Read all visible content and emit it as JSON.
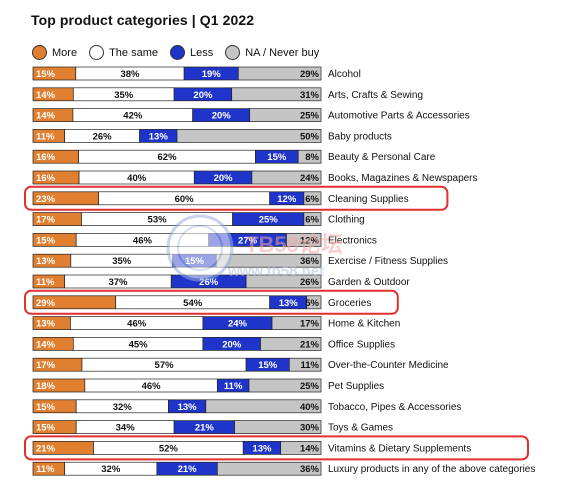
{
  "chart_data": {
    "type": "bar",
    "stacked": true,
    "orientation": "horizontal",
    "title": "Top product categories | Q1 2022",
    "legend": [
      {
        "name": "More",
        "color": "#e07f2f"
      },
      {
        "name": "The same",
        "color": "#ffffff"
      },
      {
        "name": "Less",
        "color": "#1f35c9"
      },
      {
        "name": "NA / Never buy",
        "color": "#c5c5c5"
      }
    ],
    "categories": [
      "Alcohol",
      "Arts, Crafts & Sewing",
      "Automotive Parts & Accessories",
      "Baby products",
      "Beauty & Personal Care",
      "Books, Magazines & Newspapers",
      "Cleaning Supplies",
      "Clothing",
      "Electronics",
      "Exercise / Fitness Supplies",
      "Garden & Outdoor",
      "Groceries",
      "Home & Kitchen",
      "Office Supplies",
      "Over-the-Counter Medicine",
      "Pet Supplies",
      "Tobacco, Pipes & Accessories",
      "Toys & Games",
      "Vitamins & Dietary Supplements",
      "Luxury products in any of the above categories"
    ],
    "series": [
      {
        "name": "More",
        "values": [
          15,
          14,
          14,
          11,
          16,
          16,
          23,
          17,
          15,
          13,
          11,
          29,
          13,
          14,
          17,
          18,
          15,
          15,
          21,
          11
        ]
      },
      {
        "name": "The same",
        "values": [
          38,
          35,
          42,
          26,
          62,
          40,
          60,
          53,
          46,
          35,
          37,
          54,
          46,
          45,
          57,
          46,
          32,
          34,
          52,
          32
        ]
      },
      {
        "name": "Less",
        "values": [
          19,
          20,
          20,
          13,
          15,
          20,
          12,
          25,
          27,
          15,
          26,
          13,
          24,
          20,
          15,
          11,
          13,
          21,
          13,
          21
        ]
      },
      {
        "name": "NA / Never buy",
        "values": [
          29,
          31,
          25,
          50,
          8,
          24,
          6,
          6,
          12,
          36,
          26,
          5,
          17,
          21,
          11,
          25,
          40,
          30,
          14,
          36
        ]
      }
    ],
    "highlighted_categories": [
      "Cleaning Supplies",
      "Groceries",
      "Vitamins & Dietary Supplements"
    ],
    "highlight_color": "#e0302f",
    "xlim": [
      0,
      100
    ],
    "grid": false,
    "legend_position": "top-left",
    "watermark": {
      "text": "TB58论坛",
      "url": "www.tb58.net"
    }
  }
}
